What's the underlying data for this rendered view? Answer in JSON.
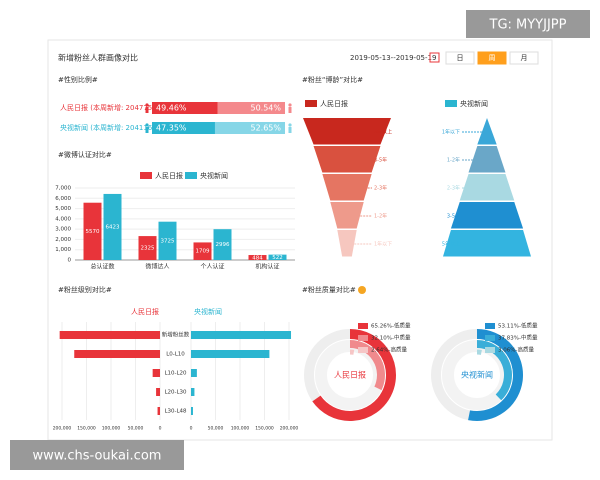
{
  "watermark": "TG: MYYJJPP",
  "footer_watermark": "www.chs-oukai.com",
  "header": {
    "title": "新增粉丝人群画像对比",
    "date_range": "2019-05-13--2019-05-19",
    "buttons": [
      "日",
      "周",
      "月"
    ],
    "active_button": 1
  },
  "chart_data": [
    {
      "type": "stacked_hbar",
      "title": "#性别比例#",
      "categories": [
        "人民日报 (本周新增: 204775)",
        "央视新闻 (本周新增: 204116)"
      ],
      "category_colors": [
        "#e8343a",
        "#2bb5d0"
      ],
      "xlim": [
        0,
        100
      ],
      "series": [
        {
          "colors": [
            "#e8343a",
            "#2bb5d0"
          ],
          "values": [
            49.46,
            47.35
          ],
          "value_labels": [
            "49.46%",
            "47.35%"
          ]
        },
        {
          "colors": [
            "#f4898c",
            "#86d6e7"
          ],
          "values": [
            50.54,
            52.65
          ],
          "value_labels": [
            "50.54%",
            "52.65%"
          ]
        }
      ]
    },
    {
      "type": "bar",
      "title": "#微博认证对比#",
      "categories": [
        "总认证数",
        "微博达人",
        "个人认证",
        "机构认证"
      ],
      "series": [
        {
          "name": "人民日报",
          "color": "#e8343a",
          "values": [
            5570,
            2325,
            1709,
            484
          ]
        },
        {
          "name": "央视新闻",
          "color": "#2bb5d0",
          "values": [
            6423,
            3725,
            2996,
            522
          ]
        }
      ],
      "ylim": [
        0,
        7000
      ],
      "yticks": [
        0,
        {
          "value": 1000,
          "label": "1,000"
        },
        {
          "value": 2000,
          "label": "2,000"
        },
        {
          "value": 3000,
          "label": "3,000"
        },
        {
          "value": 4000,
          "label": "4,000"
        },
        {
          "value": 5000,
          "label": "5,000"
        },
        {
          "value": 6000,
          "label": "6,000"
        },
        {
          "value": 7000,
          "label": "7,000"
        }
      ],
      "grid": true
    },
    {
      "type": "funnel",
      "title": "#粉丝“博龄”对比#",
      "series": [
        {
          "name": "人民日报",
          "color": "#c8281e",
          "colors": [
            "#c8281e",
            "#d9513f",
            "#e57562",
            "#ee9a8b",
            "#f6c7bf"
          ],
          "categories": [
            "5年以上",
            "3-5年",
            "2-3年",
            "1-2年",
            "1年以下"
          ],
          "values": [
            100,
            76,
            56,
            38,
            22
          ]
        },
        {
          "name": "央视新闻",
          "color": "#2bb5d0",
          "colors": [
            "#3aa7d8",
            "#6aa7c8",
            "#a9d9e2",
            "#1f8fd1",
            "#33b4e0"
          ],
          "categories": [
            "1年以下",
            "1-2年",
            "2-3年",
            "3-5年",
            "5年以上"
          ],
          "values": [
            22,
            42,
            62,
            82,
            100
          ]
        }
      ]
    },
    {
      "type": "butterfly",
      "title": "#粉丝级别对比#",
      "categories": [
        "新增粉丝数",
        "L0-L10",
        "L10-L20",
        "L20-L30",
        "L30-L48"
      ],
      "series": [
        {
          "name": "人民日报",
          "color": "#e8343a",
          "values": [
            204775,
            175000,
            15000,
            8000,
            5000
          ]
        },
        {
          "name": "央视新闻",
          "color": "#2bb5d0",
          "values": [
            204116,
            160000,
            12000,
            7000,
            4000
          ]
        }
      ],
      "xlim": [
        0,
        200000
      ],
      "xticks": [
        0,
        {
          "value": 50000,
          "label": "50,000"
        },
        {
          "value": 100000,
          "label": "100,000"
        },
        {
          "value": 150000,
          "label": "150,000"
        },
        {
          "value": 200000,
          "label": "200,000"
        }
      ]
    },
    {
      "type": "donut",
      "title": "#粉丝质量对比#",
      "series": [
        {
          "name": "人民日报",
          "colors": [
            "#e8343a",
            "#f08a8d",
            "#f6c6c6"
          ],
          "values": [
            65.26,
            32.1,
            2.64
          ],
          "value_labels": [
            "65.26%-低质量",
            "32.10%-中质量",
            "2.64%-高质量"
          ]
        },
        {
          "name": "央视新闻",
          "colors": [
            "#1f8fd1",
            "#3aaed8",
            "#a9d9e2"
          ],
          "values": [
            53.11,
            37.83,
            3.06
          ],
          "value_labels": [
            "53.11%-低质量",
            "37.83%-中质量",
            "3.06%-高质量"
          ]
        }
      ]
    }
  ]
}
